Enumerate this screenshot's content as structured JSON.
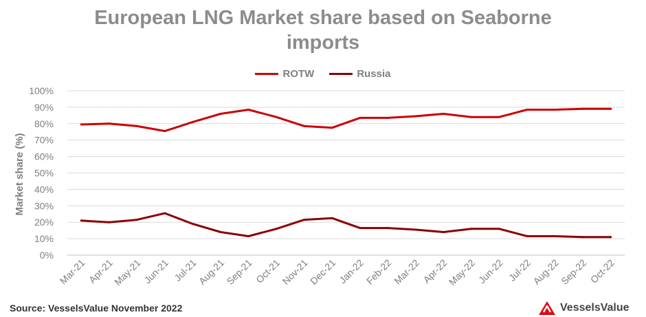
{
  "chart_data": {
    "type": "line",
    "title_line1": "European LNG Market share based on Seaborne",
    "title_line2": "imports",
    "ylabel": "Market share (%)",
    "xlabel": "",
    "ylim": [
      0,
      100
    ],
    "y_ticks": [
      "0%",
      "10%",
      "20%",
      "30%",
      "40%",
      "50%",
      "60%",
      "70%",
      "80%",
      "90%",
      "100%"
    ],
    "grid": true,
    "legend_position": "top-center",
    "categories": [
      "Mar-21",
      "Apr-21",
      "May-21",
      "Jun-21",
      "Jul-21",
      "Aug-21",
      "Sep-21",
      "Oct-21",
      "Nov-21",
      "Dec-21",
      "Jan-22",
      "Feb-22",
      "Mar-22",
      "Apr-22",
      "May-22",
      "Jun-22",
      "Jul-22",
      "Aug-22",
      "Sep-22",
      "Oct-22"
    ],
    "series": [
      {
        "name": "ROTW",
        "color": "#cc0000",
        "values": [
          79.5,
          80,
          78.5,
          75.5,
          81,
          86,
          88.5,
          84,
          78.5,
          77.5,
          83.5,
          83.5,
          84.5,
          86,
          84,
          84,
          88.5,
          88.5,
          89,
          89
        ]
      },
      {
        "name": "Russia",
        "color": "#8b0000",
        "values": [
          21,
          20,
          21.5,
          25.5,
          19,
          14,
          11.5,
          16,
          21.5,
          22.5,
          16.5,
          16.5,
          15.5,
          14,
          16,
          16,
          11.5,
          11.5,
          11,
          11
        ]
      }
    ]
  },
  "footer": {
    "source": "Source: VesselsValue November 2022",
    "brand_name": "VesselsValue",
    "brand_color": "#e30613"
  }
}
